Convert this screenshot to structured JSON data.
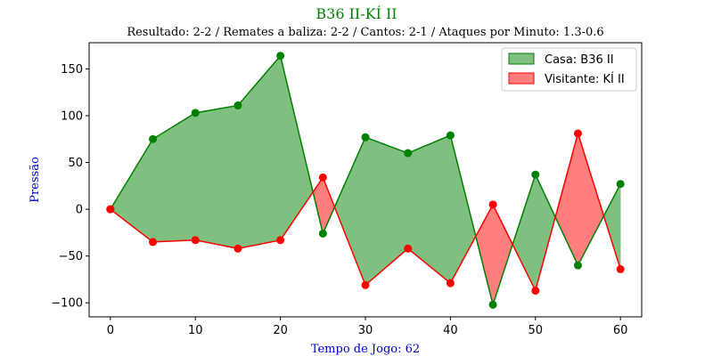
{
  "chart_data": {
    "type": "line",
    "title": "B36 II-KÍ II",
    "subtitle": "Resultado: 2-2 / Remates a baliza: 2-2 / Cantos: 2-1 / Ataques por Minuto: 1.3-0.6",
    "xlabel": "Tempo de Jogo: 62",
    "ylabel": "Pressão",
    "x": [
      0,
      5,
      10,
      15,
      20,
      25,
      30,
      35,
      40,
      45,
      50,
      55,
      60
    ],
    "xlim": [
      -2.5,
      62.5
    ],
    "ylim": [
      -115,
      178
    ],
    "xticks": [
      0,
      10,
      20,
      30,
      40,
      50,
      60
    ],
    "yticks": [
      -100,
      -50,
      0,
      50,
      100,
      150
    ],
    "xtick_labels": [
      "0",
      "10",
      "20",
      "30",
      "40",
      "50",
      "60"
    ],
    "ytick_labels": [
      "−100",
      "−50",
      "0",
      "50",
      "100",
      "150"
    ],
    "series": [
      {
        "name": "Casa: B36 II",
        "color": "#008000",
        "fill": "#7fbf7f",
        "values": [
          0,
          75,
          103,
          111,
          164,
          -26,
          77,
          60,
          79,
          -102,
          37,
          -60,
          27
        ]
      },
      {
        "name": "Visitante: KÍ II",
        "color": "#ff0000",
        "fill": "#ff7f7f",
        "values": [
          0,
          -35,
          -33,
          -42,
          -33,
          34,
          -81,
          -42,
          -79,
          5,
          -87,
          81,
          -64
        ]
      }
    ],
    "legend_position": "top-right",
    "grid": false,
    "title_color": "#008000",
    "axis_label_color": "#0000cd"
  }
}
